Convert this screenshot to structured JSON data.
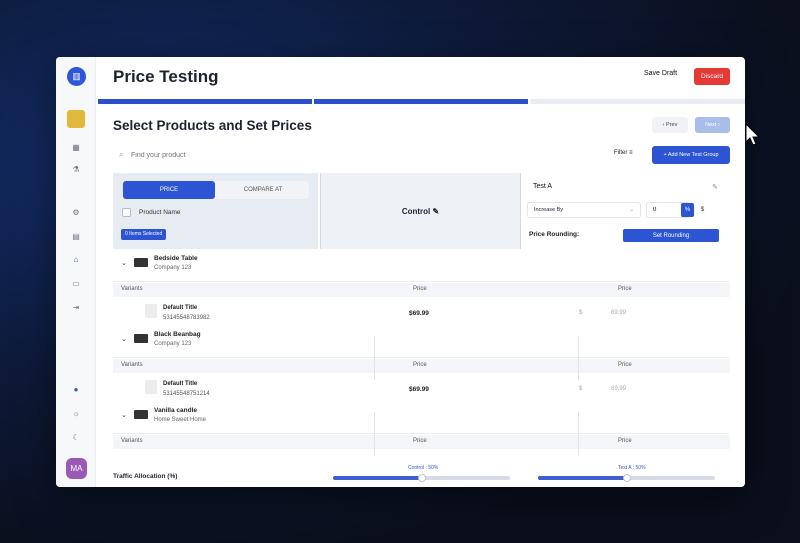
{
  "app": {
    "title": "Price Testing"
  },
  "header": {
    "save_draft": "Save Draft",
    "discard": "Discard"
  },
  "steps": {
    "count": 3,
    "current": 2
  },
  "rail": {
    "avatar": "MA"
  },
  "page": {
    "heading": "Select Products and Set Prices",
    "prev": "‹  Prev",
    "next": "Next  ›"
  },
  "search": {
    "placeholder": "Find your product",
    "filter_label": "Filter",
    "add_group": "+  Add New Test Group"
  },
  "left_panel": {
    "tab_price": "PRICE",
    "tab_compare": "COMPARE AT",
    "product_name_header": "Product Name",
    "selected_badge": "0 Items Selected"
  },
  "control_panel": {
    "label": "Control"
  },
  "test_panel": {
    "name": "Test A",
    "adjust_mode": "Increase By",
    "value": "0",
    "percent": "%",
    "dollar": "$",
    "rounding_label": "Price Rounding:",
    "set_rounding": "Set Rounding"
  },
  "columns": {
    "variants": "Variants",
    "price": "Price"
  },
  "products": [
    {
      "title": "Bedside Table",
      "vendor": "Company 123",
      "variants": [
        {
          "title": "Default Title",
          "id": "53145548783982",
          "control_price": "$69.99",
          "currency": "$",
          "test_price": "69.99"
        }
      ]
    },
    {
      "title": "Black Beanbag",
      "vendor": "Company 123",
      "variants": [
        {
          "title": "Default Title",
          "id": "53145548751214",
          "control_price": "$69.99",
          "currency": "$",
          "test_price": "69.99"
        }
      ]
    },
    {
      "title": "Vanilla candle",
      "vendor": "Home Sweet Home",
      "variants": []
    }
  ],
  "traffic": {
    "label": "Traffic Allocation (%)",
    "control_label": "Control : 50%",
    "test_label": "Test A : 50%",
    "control_pct": 50,
    "test_pct": 50
  },
  "colors": {
    "primary": "#2c54d3",
    "danger": "#e53935",
    "progress": "#2a4fc9"
  }
}
